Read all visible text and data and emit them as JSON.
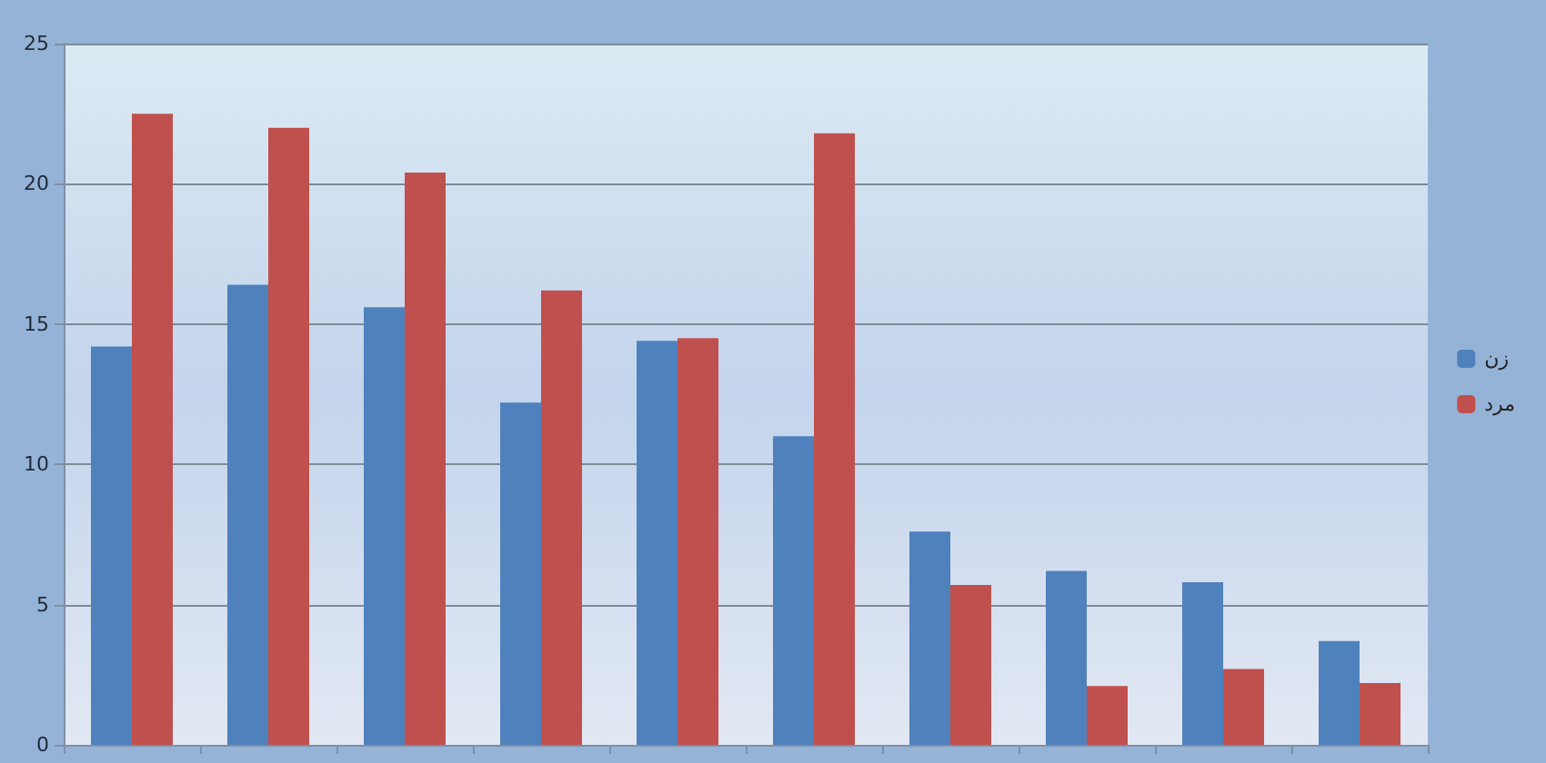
{
  "chart_data": {
    "type": "bar",
    "categories": [
      null,
      null,
      null,
      null,
      null,
      null,
      null,
      null,
      null,
      null
    ],
    "series": [
      {
        "name": "زن",
        "color": "#4f81bd",
        "values": [
          14.2,
          16.4,
          15.6,
          12.2,
          14.4,
          11.0,
          7.6,
          6.2,
          5.8,
          3.7
        ]
      },
      {
        "name": "مرد",
        "color": "#c0504d",
        "values": [
          22.5,
          22.0,
          20.4,
          16.2,
          14.5,
          21.8,
          5.7,
          2.1,
          2.7,
          2.2
        ]
      }
    ],
    "ylim": [
      0,
      25
    ],
    "yticks": [
      0,
      5,
      10,
      15,
      20,
      25
    ],
    "grid": "y",
    "legend": "right"
  }
}
